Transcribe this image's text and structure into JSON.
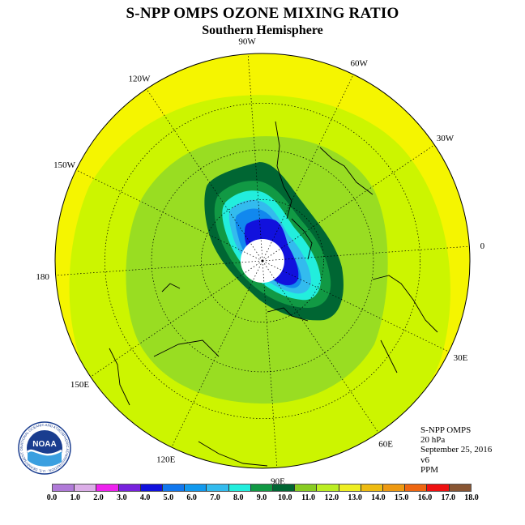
{
  "title": "S-NPP OMPS OZONE MIXING RATIO",
  "subtitle": "Southern Hemisphere",
  "longitude_labels": [
    "0",
    "30E",
    "60E",
    "90E",
    "120E",
    "150E",
    "180",
    "150W",
    "120W",
    "90W",
    "60W",
    "30W"
  ],
  "info": {
    "instrument": "S-NPP OMPS",
    "level": "20 hPa",
    "date": "September 25, 2016",
    "version": "v6",
    "units": "PPM"
  },
  "logo": {
    "text": "NOAA",
    "ring_text": "NATIONAL OCEANIC AND ATMOSPHERIC ADMINISTRATION · U.S. DEPARTMENT OF COMMERCE"
  },
  "colorbar": {
    "ticks": [
      "0.0",
      "1.0",
      "2.0",
      "3.0",
      "4.0",
      "5.0",
      "6.0",
      "7.0",
      "8.0",
      "9.0",
      "10.0",
      "11.0",
      "12.0",
      "13.0",
      "14.0",
      "15.0",
      "16.0",
      "17.0",
      "18.0"
    ],
    "colors": [
      "#b07ad8",
      "#dcaee8",
      "#ee22ee",
      "#7722dd",
      "#1111dd",
      "#1177ee",
      "#1199ee",
      "#33bbee",
      "#22eedd",
      "#119944",
      "#006633",
      "#88cc22",
      "#bbee22",
      "#eeee22",
      "#eebb11",
      "#ee9911",
      "#ee6611",
      "#ee1111",
      "#885533"
    ]
  },
  "legend_colors": {
    "outer": "#f5f500",
    "ring_11_12": "#ccf500",
    "ring_10_11": "#99dd22",
    "ring_9_10": "#006633",
    "ring_8_9": "#119944",
    "ring_7_8": "#22eedd",
    "ring_6_7": "#33bbee",
    "ring_5_6": "#1188ee",
    "core": "#1111dd",
    "no_data": "#ffffff"
  }
}
